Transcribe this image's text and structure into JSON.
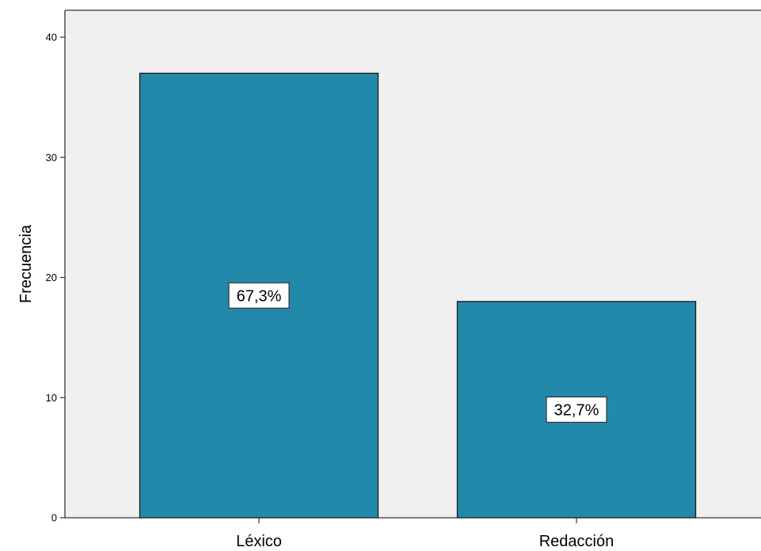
{
  "chart_data": {
    "type": "bar",
    "categories": [
      "Léxico",
      "Redacción"
    ],
    "values": [
      37,
      18
    ],
    "data_labels": [
      "67,3%",
      "32,7%"
    ],
    "title": "",
    "xlabel": "",
    "ylabel": "Frecuencia",
    "ylim": [
      0,
      40
    ],
    "yticks": [
      0,
      10,
      20,
      30,
      40
    ],
    "grid": false,
    "legend": "none",
    "colors": {
      "bar_fill": "#2389aa",
      "bar_stroke": "#1a1a1a",
      "plot_background": "#f0f0f0",
      "axis": "#333333"
    }
  }
}
